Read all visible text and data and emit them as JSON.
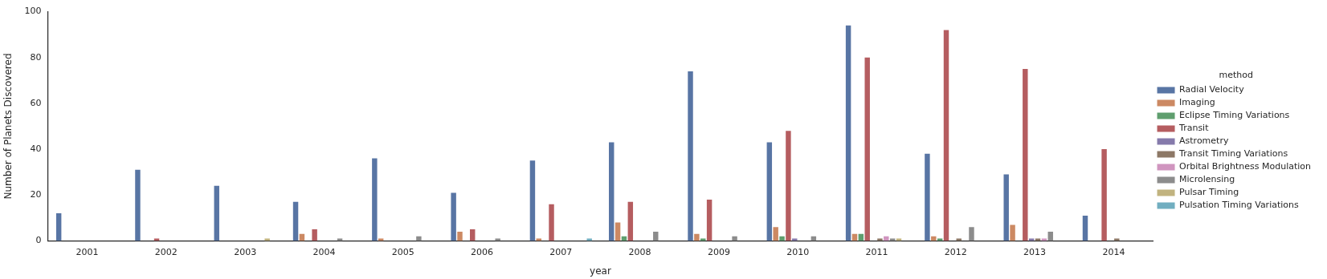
{
  "chart_data": {
    "type": "bar",
    "xlabel": "year",
    "ylabel": "Number of Planets Discovered",
    "legend_title": "method",
    "categories": [
      "2001",
      "2002",
      "2003",
      "2004",
      "2005",
      "2006",
      "2007",
      "2008",
      "2009",
      "2010",
      "2011",
      "2012",
      "2013",
      "2014"
    ],
    "series": [
      {
        "name": "Radial Velocity",
        "color": "#5875a4",
        "values": [
          12,
          31,
          24,
          17,
          36,
          21,
          35,
          43,
          74,
          43,
          94,
          38,
          29,
          11
        ]
      },
      {
        "name": "Imaging",
        "color": "#cc8963",
        "values": [
          0,
          0,
          0,
          3,
          1,
          4,
          1,
          8,
          3,
          6,
          3,
          2,
          7,
          0
        ]
      },
      {
        "name": "Eclipse Timing Variations",
        "color": "#5f9e6e",
        "values": [
          0,
          0,
          0,
          0,
          0,
          0,
          0,
          2,
          1,
          2,
          3,
          1,
          0,
          0
        ]
      },
      {
        "name": "Transit",
        "color": "#b55d60",
        "values": [
          0,
          1,
          0,
          5,
          0,
          5,
          16,
          17,
          18,
          48,
          80,
          92,
          75,
          40
        ]
      },
      {
        "name": "Astrometry",
        "color": "#857aab",
        "values": [
          0,
          0,
          0,
          0,
          0,
          0,
          0,
          0,
          0,
          1,
          0,
          0,
          1,
          0
        ]
      },
      {
        "name": "Transit Timing Variations",
        "color": "#8d7866",
        "values": [
          0,
          0,
          0,
          0,
          0,
          0,
          0,
          0,
          0,
          0,
          1,
          1,
          1,
          1
        ]
      },
      {
        "name": "Orbital Brightness Modulation",
        "color": "#d095bf",
        "values": [
          0,
          0,
          0,
          0,
          0,
          0,
          0,
          0,
          0,
          0,
          2,
          0,
          1,
          0
        ]
      },
      {
        "name": "Microlensing",
        "color": "#8c8c8c",
        "values": [
          0,
          0,
          0,
          1,
          2,
          1,
          0,
          4,
          2,
          2,
          1,
          6,
          4,
          0
        ]
      },
      {
        "name": "Pulsar Timing",
        "color": "#c1b37f",
        "values": [
          0,
          0,
          1,
          0,
          0,
          0,
          0,
          0,
          0,
          0,
          1,
          0,
          0,
          0
        ]
      },
      {
        "name": "Pulsation Timing Variations",
        "color": "#71aec0",
        "values": [
          0,
          0,
          0,
          0,
          0,
          0,
          1,
          0,
          0,
          0,
          0,
          0,
          0,
          0
        ]
      }
    ],
    "ylim": [
      0,
      100
    ],
    "yticks": [
      0,
      20,
      40,
      60,
      80,
      100
    ],
    "legend": "right"
  }
}
